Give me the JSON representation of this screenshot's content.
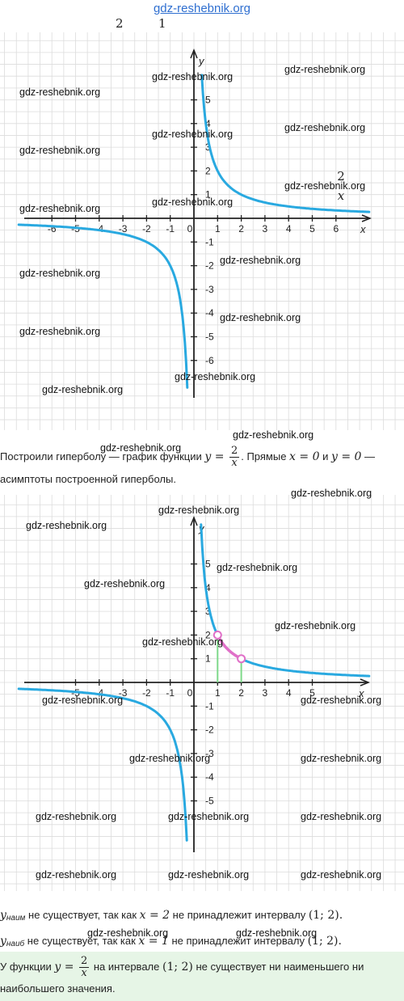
{
  "header": {
    "site_link": "gdz-reshebnik.org",
    "fraction_numerator": "2",
    "fraction_denominator": "1"
  },
  "graph1": {
    "x_label": "x",
    "y_label": "y",
    "x_ticks": [
      "-6",
      "-5",
      "-4",
      "-3",
      "-2",
      "-1",
      "0",
      "1",
      "2",
      "3",
      "4",
      "5",
      "6"
    ],
    "y_ticks": [
      "5",
      "4",
      "3",
      "2",
      "1",
      "-1",
      "-2",
      "-3",
      "-4",
      "-5",
      "-6"
    ],
    "formula_numerator": "2",
    "formula_denominator": "x",
    "curve_color": "#29a9e0"
  },
  "graph2": {
    "x_label": "x",
    "y_label": "y",
    "x_ticks": [
      "-5",
      "-4",
      "-3",
      "-2",
      "-1",
      "0",
      "1",
      "2",
      "3",
      "4",
      "5"
    ],
    "y_ticks": [
      "5",
      "4",
      "3",
      "2",
      "1",
      "-1",
      "-2",
      "-3",
      "-4",
      "-5"
    ],
    "curve_color": "#29a9e0",
    "highlight_color": "#e070c8",
    "interval": [
      1,
      2
    ],
    "open_points": [
      [
        1,
        2
      ],
      [
        2,
        1
      ]
    ]
  },
  "text": {
    "line1_a": "Построили гиперболу — график функции ",
    "line1_y": "y",
    "line1_eq": " = ",
    "line1_num": "2",
    "line1_den": "x",
    "line1_b": ". Прямые ",
    "line1_x0": "x = 0",
    "line1_c": " и ",
    "line1_y0": "y = 0",
    "line1_d": " —",
    "line2": "асимптоты построенной гиперболы.",
    "min_y": "y",
    "min_sub": "наим",
    "min_a": " не существует, так как ",
    "min_eq": "x = 2",
    "min_b": " не принадлежит интервалу ",
    "min_int": "(1;  2).",
    "max_y": "y",
    "max_sub": "наиб",
    "max_a": " не существует, так как ",
    "max_eq": "x = 1",
    "max_b": " не принадлежит интервалу ",
    "max_int": "(1;  2).",
    "ans_a": "У функции ",
    "ans_y": "y",
    "ans_eq": " = ",
    "ans_num": "2",
    "ans_den": "x",
    "ans_b": " на интервале ",
    "ans_int": "(1;  2)",
    "ans_c": " не существует ни наименьшего ни",
    "ans_line2": "наибольшего значения."
  },
  "watermarks": {
    "text": "gdz-reshebnik.org"
  }
}
